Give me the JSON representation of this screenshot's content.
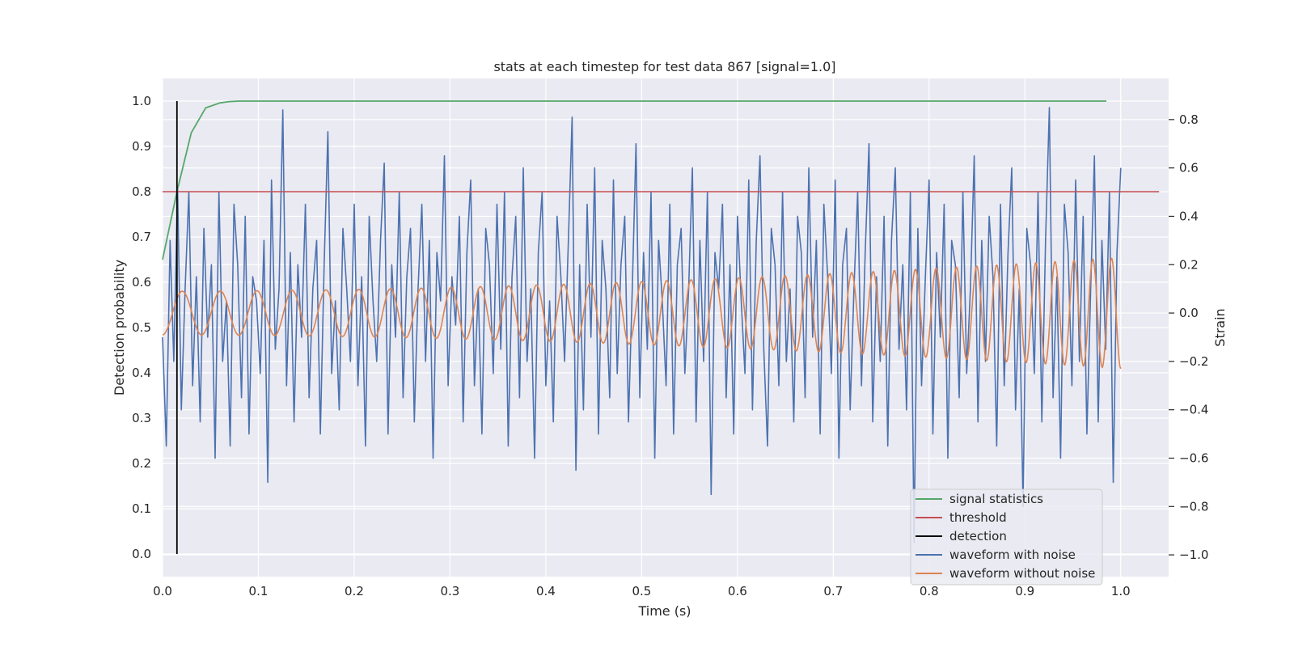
{
  "chart_data": {
    "type": "line",
    "title": "stats at each timestep for test data 867 [signal=1.0]",
    "xlabel": "Time (s)",
    "ylabel": "Detection probability",
    "y2label": "Strain",
    "xlim": [
      0.0,
      1.05
    ],
    "ylim": [
      -0.05,
      1.05
    ],
    "y2lim": [
      -1.09,
      0.97
    ],
    "grid": true,
    "legend_position": "lower-right",
    "x_ticks": [
      "0.0",
      "0.1",
      "0.2",
      "0.3",
      "0.4",
      "0.5",
      "0.6",
      "0.7",
      "0.8",
      "0.9",
      "1.0"
    ],
    "y_ticks": [
      "0.0",
      "0.1",
      "0.2",
      "0.3",
      "0.4",
      "0.5",
      "0.6",
      "0.7",
      "0.8",
      "0.9",
      "1.0"
    ],
    "y2_ticks": [
      "−1.0",
      "−0.8",
      "−0.6",
      "−0.4",
      "−0.2",
      "0.0",
      "0.2",
      "0.4",
      "0.6",
      "0.8"
    ],
    "colors": {
      "signal_statistics": "#55a868",
      "threshold": "#c44e52",
      "detection": "#000000",
      "waveform_with_noise": "#4c72b0",
      "waveform_without_noise": "#dd8452",
      "plot_background": "#eaeaf2",
      "grid": "#ffffff"
    },
    "series": [
      {
        "name": "signal statistics",
        "axis": "left",
        "x": [
          0.0,
          0.015,
          0.03,
          0.045,
          0.06,
          0.07,
          0.08,
          0.1,
          0.15,
          0.2,
          0.3,
          0.5,
          0.7,
          0.9,
          0.985
        ],
        "y": [
          0.65,
          0.8,
          0.93,
          0.985,
          0.996,
          0.999,
          1.0,
          1.0,
          1.0,
          1.0,
          1.0,
          1.0,
          1.0,
          1.0,
          1.0
        ]
      },
      {
        "name": "threshold",
        "axis": "left",
        "x": [
          0.0,
          1.04
        ],
        "y": [
          0.8,
          0.8
        ]
      },
      {
        "name": "detection",
        "axis": "left",
        "x": [
          0.015,
          0.015
        ],
        "y": [
          0.0,
          1.0
        ]
      },
      {
        "name": "waveform with noise",
        "axis": "right",
        "x_start": 0.0,
        "x_end": 1.0,
        "y": [
          -0.1,
          -0.55,
          0.3,
          -0.2,
          0.52,
          -0.4,
          0.1,
          0.5,
          -0.3,
          0.15,
          -0.45,
          0.35,
          -0.1,
          0.2,
          -0.6,
          0.5,
          -0.2,
          0.05,
          -0.55,
          0.45,
          0.2,
          -0.35,
          0.4,
          -0.5,
          0.15,
          0.05,
          -0.25,
          0.3,
          -0.7,
          0.55,
          -0.15,
          0.1,
          0.84,
          -0.3,
          0.25,
          -0.45,
          0.2,
          -0.1,
          0.45,
          -0.35,
          0.1,
          0.3,
          -0.5,
          0.2,
          0.75,
          -0.25,
          0.05,
          -0.4,
          0.35,
          0.1,
          -0.2,
          0.45,
          -0.3,
          0.15,
          -0.55,
          0.4,
          0.05,
          -0.2,
          0.3,
          0.62,
          -0.5,
          0.2,
          -0.1,
          0.5,
          -0.35,
          0.15,
          0.35,
          -0.45,
          0.1,
          0.45,
          -0.2,
          0.3,
          -0.6,
          0.25,
          0.05,
          0.65,
          -0.3,
          0.15,
          -0.05,
          0.4,
          -0.45,
          0.25,
          0.55,
          -0.3,
          0.1,
          -0.5,
          0.35,
          0.2,
          -0.25,
          0.45,
          -0.15,
          0.5,
          -0.55,
          0.15,
          0.4,
          -0.35,
          0.6,
          -0.2,
          0.1,
          -0.6,
          0.25,
          0.5,
          -0.3,
          0.05,
          -0.45,
          0.4,
          0.15,
          -0.2,
          0.3,
          0.81,
          -0.65,
          0.2,
          -0.4,
          0.45,
          -0.1,
          0.6,
          -0.5,
          0.3,
          0.1,
          -0.35,
          0.55,
          -0.25,
          0.2,
          0.4,
          -0.45,
          0.1,
          0.7,
          -0.35,
          0.25,
          -0.15,
          0.5,
          -0.6,
          0.3,
          0.05,
          -0.3,
          0.45,
          -0.5,
          0.2,
          0.35,
          -0.25,
          0.1,
          0.6,
          -0.45,
          0.3,
          -0.2,
          0.5,
          -0.75,
          0.25,
          0.1,
          0.45,
          -0.35,
          0.2,
          -0.5,
          0.4,
          0.05,
          -0.25,
          0.55,
          -0.4,
          0.3,
          0.65,
          -0.15,
          -0.55,
          0.35,
          0.2,
          -0.3,
          0.5,
          -0.2,
          0.1,
          -0.45,
          0.4,
          0.25,
          -0.35,
          0.6,
          -0.1,
          0.3,
          -0.5,
          0.45,
          0.15,
          -0.25,
          0.55,
          -0.6,
          0.2,
          0.35,
          -0.4,
          0.1,
          0.5,
          -0.3,
          0.25,
          0.7,
          -0.45,
          0.15,
          -0.2,
          0.4,
          -0.55,
          0.3,
          0.6,
          -0.15,
          0.2,
          -0.4,
          0.5,
          -0.95,
          0.35,
          -0.3,
          0.15,
          0.55,
          -0.5,
          0.25,
          -0.1,
          0.45,
          -0.6,
          0.3,
          0.2,
          -0.35,
          0.5,
          -0.25,
          0.1,
          0.65,
          -0.45,
          0.3,
          -0.2,
          0.4,
          0.15,
          -0.55,
          0.45,
          -0.3,
          0.25,
          0.6,
          -0.4,
          0.1,
          -0.8,
          0.35,
          0.2,
          -0.25,
          0.5,
          -0.45,
          0.3,
          0.85,
          -0.35,
          0.15,
          -0.6,
          0.45,
          0.25,
          -0.3,
          0.55,
          -0.2,
          0.4,
          -0.5,
          0.1,
          0.65,
          -0.45,
          0.3,
          -0.15,
          0.5,
          -0.7,
          0.25,
          0.6
        ],
        "y_min": -1.0,
        "y_max": 0.87
      },
      {
        "name": "waveform without noise",
        "axis": "right",
        "model": "chirp",
        "x_start": 0.0,
        "x_end": 1.0,
        "amplitude_start": 0.09,
        "amplitude_end": 0.23,
        "cycles_start_per_s": 24,
        "cycles_end_per_s": 52
      }
    ]
  }
}
